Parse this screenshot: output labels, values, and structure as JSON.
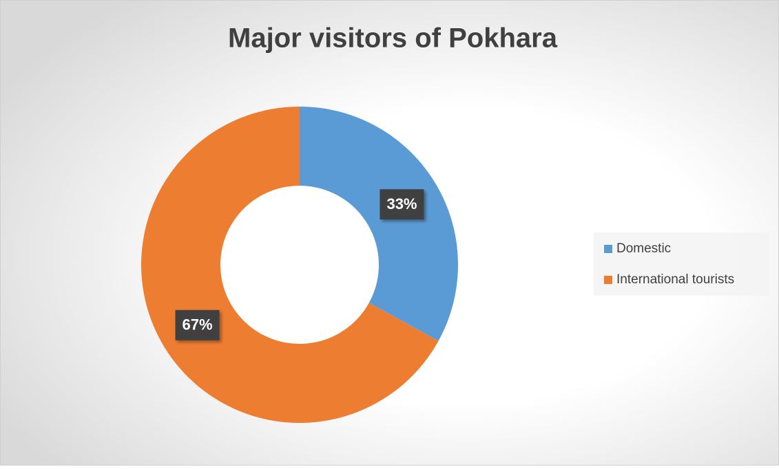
{
  "chart_data": {
    "type": "pie",
    "title": "Major visitors of Pokhara",
    "categories": [
      "Domestic",
      "International tourists"
    ],
    "values": [
      33,
      67
    ],
    "value_labels": [
      "33%",
      "67%"
    ],
    "colors": [
      "#5b9bd5",
      "#ed7d31"
    ],
    "donut": true,
    "legend": "right"
  }
}
